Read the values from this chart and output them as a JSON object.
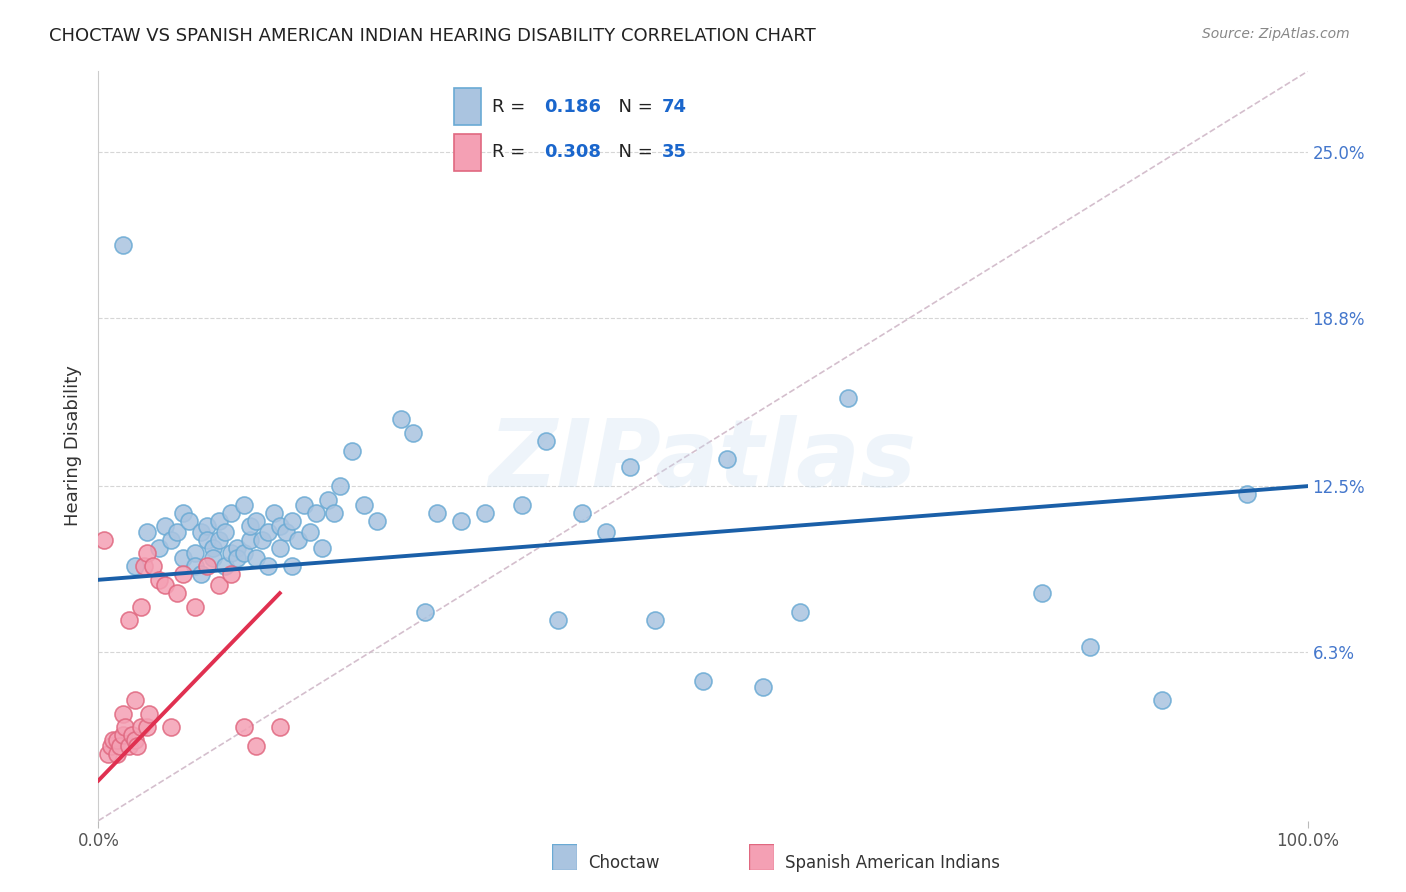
{
  "title": "CHOCTAW VS SPANISH AMERICAN INDIAN HEARING DISABILITY CORRELATION CHART",
  "source": "Source: ZipAtlas.com",
  "ylabel": "Hearing Disability",
  "xlim": [
    0,
    100
  ],
  "ylim": [
    0,
    28
  ],
  "ytick_vals": [
    6.3,
    12.5,
    18.8,
    25.0
  ],
  "ytick_labels": [
    "6.3%",
    "12.5%",
    "18.8%",
    "25.0%"
  ],
  "xtick_vals": [
    0,
    100
  ],
  "xtick_labels": [
    "0.0%",
    "100.0%"
  ],
  "choctaw_color": "#aac4e0",
  "choctaw_edge_color": "#6aaad4",
  "spanish_color": "#f4a0b4",
  "spanish_edge_color": "#e06880",
  "choctaw_line_color": "#1a5fa8",
  "spanish_line_color": "#e03050",
  "diagonal_color": "#d0b8c8",
  "R_choctaw": 0.186,
  "N_choctaw": 74,
  "R_spanish": 0.308,
  "N_spanish": 35,
  "choctaw_x": [
    2.0,
    3.0,
    4.0,
    5.0,
    5.5,
    6.0,
    6.5,
    7.0,
    7.0,
    7.5,
    8.0,
    8.0,
    8.5,
    8.5,
    9.0,
    9.0,
    9.5,
    9.5,
    10.0,
    10.0,
    10.5,
    10.5,
    11.0,
    11.0,
    11.5,
    11.5,
    12.0,
    12.0,
    12.5,
    12.5,
    13.0,
    13.0,
    13.5,
    14.0,
    14.0,
    14.5,
    15.0,
    15.0,
    15.5,
    16.0,
    16.0,
    16.5,
    17.0,
    17.5,
    18.0,
    18.5,
    19.0,
    19.5,
    20.0,
    21.0,
    22.0,
    23.0,
    25.0,
    26.0,
    27.0,
    28.0,
    30.0,
    32.0,
    35.0,
    37.0,
    38.0,
    40.0,
    42.0,
    44.0,
    46.0,
    50.0,
    52.0,
    55.0,
    58.0,
    62.0,
    78.0,
    82.0,
    88.0,
    95.0
  ],
  "choctaw_y": [
    21.5,
    9.5,
    10.8,
    10.2,
    11.0,
    10.5,
    10.8,
    11.5,
    9.8,
    11.2,
    10.0,
    9.5,
    10.8,
    9.2,
    11.0,
    10.5,
    10.2,
    9.8,
    10.5,
    11.2,
    10.8,
    9.5,
    10.0,
    11.5,
    10.2,
    9.8,
    11.8,
    10.0,
    10.5,
    11.0,
    9.8,
    11.2,
    10.5,
    10.8,
    9.5,
    11.5,
    10.2,
    11.0,
    10.8,
    9.5,
    11.2,
    10.5,
    11.8,
    10.8,
    11.5,
    10.2,
    12.0,
    11.5,
    12.5,
    13.8,
    11.8,
    11.2,
    15.0,
    14.5,
    7.8,
    11.5,
    11.2,
    11.5,
    11.8,
    14.2,
    7.5,
    11.5,
    10.8,
    13.2,
    7.5,
    5.2,
    13.5,
    5.0,
    7.8,
    15.8,
    8.5,
    6.5,
    4.5,
    12.2
  ],
  "spanish_x": [
    0.5,
    0.8,
    1.0,
    1.2,
    1.5,
    1.5,
    1.8,
    2.0,
    2.0,
    2.2,
    2.5,
    2.5,
    2.8,
    3.0,
    3.0,
    3.2,
    3.5,
    3.5,
    3.8,
    4.0,
    4.0,
    4.2,
    4.5,
    5.0,
    5.5,
    6.0,
    6.5,
    7.0,
    8.0,
    9.0,
    10.0,
    11.0,
    12.0,
    13.0,
    15.0
  ],
  "spanish_y": [
    10.5,
    2.5,
    2.8,
    3.0,
    2.5,
    3.0,
    2.8,
    3.2,
    4.0,
    3.5,
    2.8,
    7.5,
    3.2,
    4.5,
    3.0,
    2.8,
    3.5,
    8.0,
    9.5,
    10.0,
    3.5,
    4.0,
    9.5,
    9.0,
    8.8,
    3.5,
    8.5,
    9.2,
    8.0,
    9.5,
    8.8,
    9.2,
    3.5,
    2.8,
    3.5
  ],
  "choctaw_line_x": [
    0,
    100
  ],
  "choctaw_line_y": [
    9.0,
    12.5
  ],
  "spanish_line_x": [
    0,
    15
  ],
  "spanish_line_y": [
    1.5,
    8.5
  ],
  "watermark_text": "ZIPatlas",
  "background_color": "#ffffff",
  "grid_color": "#cccccc"
}
